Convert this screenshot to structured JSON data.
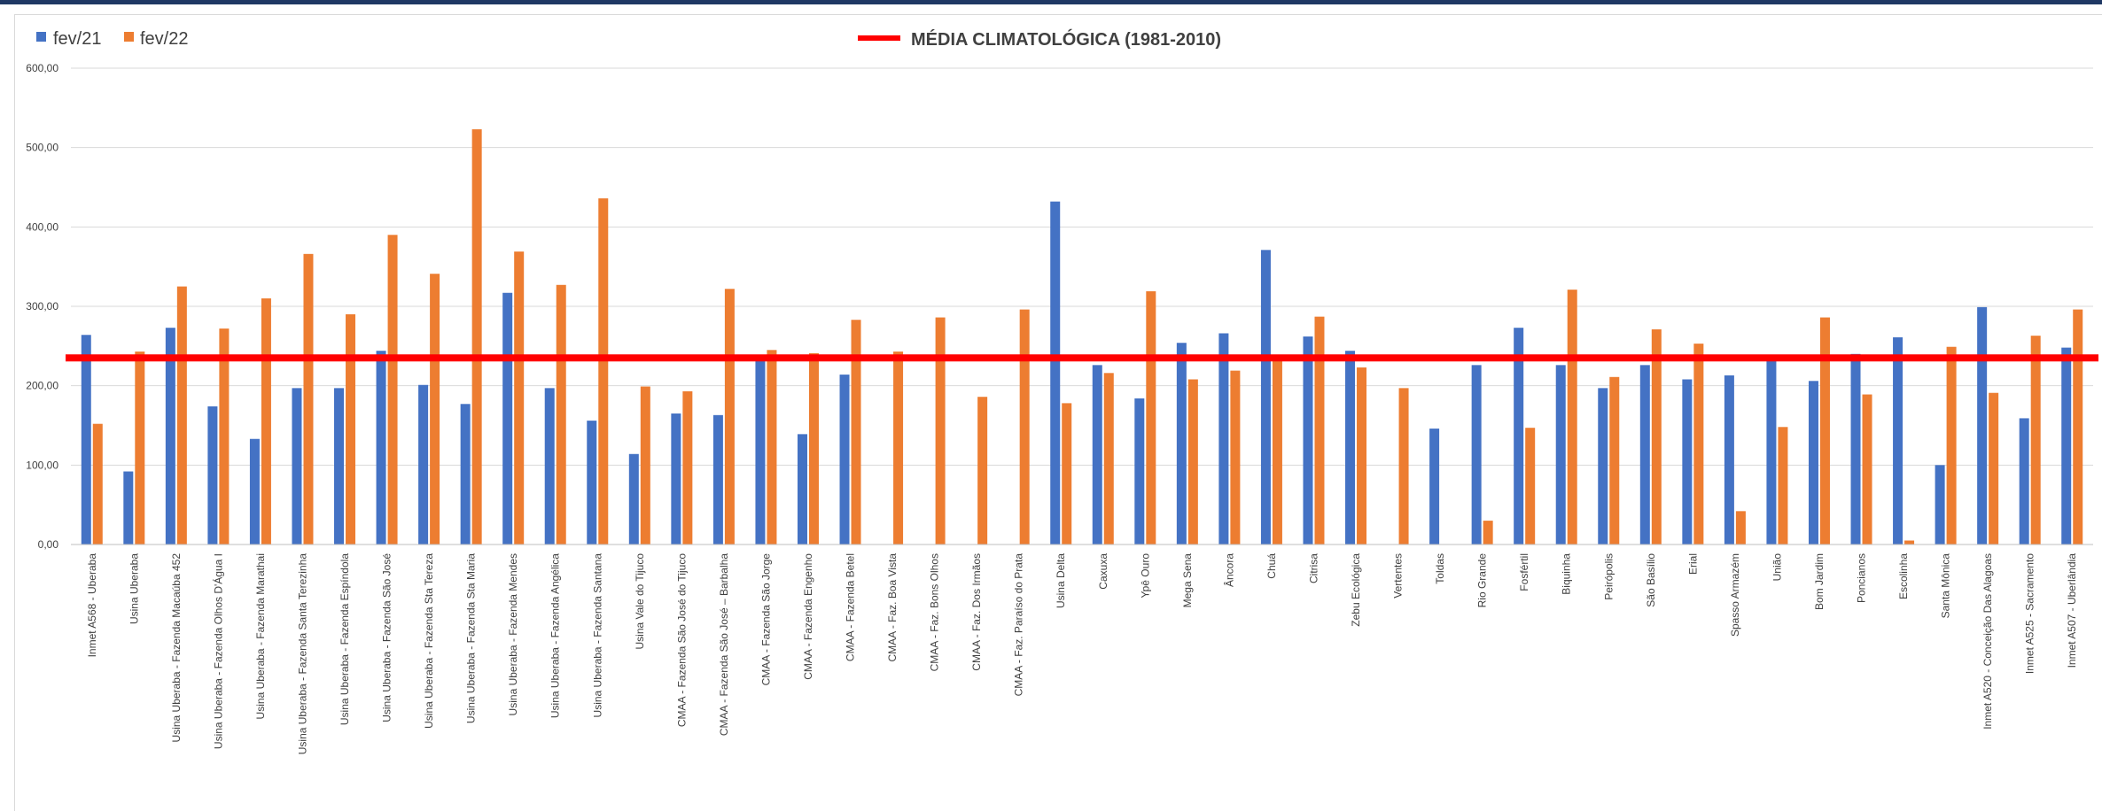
{
  "chart_data": {
    "type": "bar",
    "title": "",
    "xlabel": "",
    "ylabel": "",
    "ylim": [
      0,
      600
    ],
    "yticks": [
      "0,00",
      "100,00",
      "200,00",
      "300,00",
      "400,00",
      "500,00",
      "600,00"
    ],
    "grid": true,
    "legend_position": "top",
    "categories": [
      "Inmet A568 - Uberaba",
      "Usina Uberaba",
      "Usina Uberaba - Fazenda Macaúba 452",
      "Usina Uberaba - Fazenda Olhos D'Água I",
      "Usina Uberaba - Fazenda Marathai",
      "Usina Uberaba - Fazenda Santa Terezinha",
      "Usina Uberaba - Fazenda Espíndola",
      "Usina Uberaba - Fazenda São José",
      "Usina Uberaba - Fazenda Sta Tereza",
      "Usina Uberaba - Fazenda Sta Maria",
      "Usina Uberaba - Fazenda Mendes",
      "Usina Uberaba - Fazenda Angélica",
      "Usina Uberaba - Fazenda Santana",
      "Usina Vale do Tijuco",
      "CMAA - Fazenda São José do Tijuco",
      "CMAA - Fazenda São José – Barbalha",
      "CMAA - Fazenda São Jorge",
      "CMAA - Fazenda Engenho",
      "CMAA - Fazenda Betel",
      "CMAA - Faz. Boa Vista",
      "CMAA - Faz. Bons Olhos",
      "CMAA - Faz. Dos Irmãos",
      "CMAA - Faz. Paraíso do Prata",
      "Usina Delta",
      "Caxuxa",
      "Ypê Ouro",
      "Mega Sena",
      "Âncora",
      "Chuá",
      "Citrisa",
      "Zebu Ecológica",
      "Vertentes",
      "Toldas",
      "Rio Grande",
      "Fosfértil",
      "Biquinha",
      "Peirópolis",
      "São Basílio",
      "Erial",
      "Spasso Armazém",
      "União",
      "Bom Jardim",
      "Poncianos",
      "Escolinha",
      "Santa Mônica",
      "Inmet A520 - Conceição Das Alagoas",
      "Inmet A525 - Sacramento",
      "Inmet A507 - Uberlândia"
    ],
    "series": [
      {
        "name": "fev/21",
        "color": "#4472c4",
        "values": [
          264,
          92,
          273,
          174,
          133,
          197,
          197,
          244,
          201,
          177,
          317,
          197,
          156,
          114,
          165,
          163,
          232,
          139,
          214,
          0,
          0,
          0,
          0,
          432,
          226,
          184,
          254,
          266,
          371,
          262,
          244,
          0,
          146,
          226,
          273,
          226,
          197,
          226,
          208,
          213,
          232,
          206,
          240,
          261,
          100,
          299,
          159,
          248
        ]
      },
      {
        "name": "fev/22",
        "color": "#ed7d31",
        "values": [
          152,
          243,
          325,
          272,
          310,
          366,
          290,
          390,
          341,
          523,
          369,
          327,
          436,
          199,
          193,
          322,
          245,
          241,
          283,
          243,
          286,
          186,
          296,
          178,
          216,
          319,
          208,
          219,
          236,
          287,
          223,
          197,
          0,
          30,
          147,
          321,
          211,
          271,
          253,
          42,
          148,
          286,
          189,
          5,
          249,
          191,
          263,
          296
        ]
      }
    ],
    "reference_line": {
      "name": "MÉDIA CLIMATOLÓGICA (1981-2010)",
      "value": 235,
      "color": "#ff0000"
    }
  }
}
